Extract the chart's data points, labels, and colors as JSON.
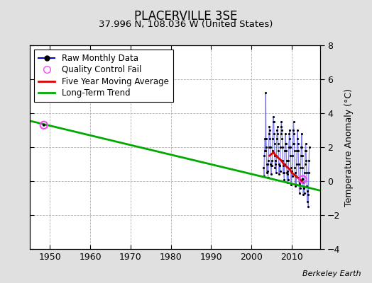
{
  "title": "PLACERVILLE 3SE",
  "subtitle": "37.996 N, 108.036 W (United States)",
  "ylabel": "Temperature Anomaly (°C)",
  "attribution": "Berkeley Earth",
  "xlim": [
    1945,
    2017
  ],
  "ylim": [
    -4,
    8
  ],
  "yticks": [
    -4,
    -2,
    0,
    2,
    4,
    6,
    8
  ],
  "xticks": [
    1950,
    1960,
    1970,
    1980,
    1990,
    2000,
    2010
  ],
  "bg_color": "#e0e0e0",
  "plot_bg_color": "#ffffff",
  "grid_color": "#b0b0b0",
  "raw_data_years": [
    2003.042,
    2003.125,
    2003.208,
    2003.292,
    2003.375,
    2003.458,
    2003.542,
    2003.625,
    2003.708,
    2003.792,
    2003.875,
    2003.958,
    2004.042,
    2004.125,
    2004.208,
    2004.292,
    2004.375,
    2004.458,
    2004.542,
    2004.625,
    2004.708,
    2004.792,
    2004.875,
    2004.958,
    2005.042,
    2005.125,
    2005.208,
    2005.292,
    2005.375,
    2005.458,
    2005.542,
    2005.625,
    2005.708,
    2005.792,
    2005.875,
    2005.958,
    2006.042,
    2006.125,
    2006.208,
    2006.292,
    2006.375,
    2006.458,
    2006.542,
    2006.625,
    2006.708,
    2006.792,
    2006.875,
    2006.958,
    2007.042,
    2007.125,
    2007.208,
    2007.292,
    2007.375,
    2007.458,
    2007.542,
    2007.625,
    2007.708,
    2007.792,
    2007.875,
    2007.958,
    2008.042,
    2008.125,
    2008.208,
    2008.292,
    2008.375,
    2008.458,
    2008.542,
    2008.625,
    2008.708,
    2008.792,
    2008.875,
    2008.958,
    2009.042,
    2009.125,
    2009.208,
    2009.292,
    2009.375,
    2009.458,
    2009.542,
    2009.625,
    2009.708,
    2009.792,
    2009.875,
    2009.958,
    2010.042,
    2010.125,
    2010.208,
    2010.292,
    2010.375,
    2010.458,
    2010.542,
    2010.625,
    2010.708,
    2010.792,
    2010.875,
    2010.958,
    2011.042,
    2011.125,
    2011.208,
    2011.292,
    2011.375,
    2011.458,
    2011.542,
    2011.625,
    2011.708,
    2011.792,
    2011.875,
    2011.958,
    2012.042,
    2012.125,
    2012.208,
    2012.292,
    2012.375,
    2012.458,
    2012.542,
    2012.625,
    2012.708,
    2012.792,
    2012.875,
    2012.958,
    2013.042,
    2013.125,
    2013.208,
    2013.292,
    2013.375,
    2013.458,
    2013.542,
    2013.625,
    2013.708,
    2013.792,
    2013.875,
    2013.958,
    2014.042,
    2014.125,
    2014.208,
    2014.292,
    2014.375
  ],
  "raw_data_values": [
    0.8,
    0.3,
    1.5,
    1.8,
    2.5,
    1.8,
    5.2,
    2.5,
    2.0,
    1.0,
    0.5,
    1.0,
    0.6,
    0.2,
    1.2,
    2.0,
    2.8,
    3.2,
    3.0,
    2.5,
    2.0,
    1.0,
    0.4,
    0.9,
    1.2,
    0.9,
    1.8,
    2.5,
    3.5,
    3.8,
    3.5,
    2.8,
    2.2,
    1.5,
    0.8,
    1.2,
    1.0,
    0.5,
    1.5,
    2.5,
    3.0,
    3.2,
    2.8,
    2.2,
    1.8,
    1.0,
    0.4,
    0.9,
    0.9,
    0.6,
    2.0,
    2.8,
    3.2,
    3.5,
    3.0,
    2.5,
    2.0,
    1.2,
    0.5,
    0.9,
    0.5,
    0.1,
    1.0,
    1.8,
    2.2,
    2.8,
    2.2,
    1.8,
    1.2,
    0.5,
    -0.1,
    0.6,
    0.4,
    0.1,
    1.2,
    2.0,
    2.8,
    3.0,
    2.5,
    2.0,
    1.5,
    0.8,
    -0.2,
    0.6,
    0.6,
    0.3,
    1.5,
    2.2,
    3.0,
    3.5,
    2.8,
    2.2,
    1.8,
    0.8,
    -0.3,
    0.5,
    0.3,
    -0.2,
    1.0,
    1.8,
    2.5,
    3.0,
    2.2,
    1.8,
    1.0,
    0.2,
    -0.7,
    -0.2,
    -0.1,
    -0.4,
    0.8,
    1.5,
    2.0,
    2.8,
    2.0,
    1.5,
    0.8,
    -0.1,
    -0.8,
    -0.4,
    -0.4,
    -0.7,
    0.5,
    1.0,
    1.8,
    2.2,
    1.8,
    1.2,
    0.5,
    -0.3,
    -1.2,
    -0.6,
    -0.8,
    -1.5,
    0.5,
    1.2,
    2.0
  ],
  "qc_fail_x": 1948.5,
  "qc_fail_y": 3.3,
  "qc_fail_x2": 2012.75,
  "qc_fail_y2": 0.1,
  "moving_avg_years": [
    2004.5,
    2005.0,
    2005.5,
    2006.0,
    2006.5,
    2007.0,
    2007.5,
    2008.0,
    2008.5,
    2009.0,
    2009.5,
    2010.0,
    2010.5,
    2011.0,
    2011.5,
    2012.0,
    2012.5
  ],
  "moving_avg_values": [
    1.5,
    1.6,
    1.7,
    1.5,
    1.4,
    1.3,
    1.2,
    1.0,
    0.9,
    0.8,
    0.7,
    0.5,
    0.4,
    0.3,
    0.2,
    0.1,
    0.0
  ],
  "trend_x": [
    1945,
    2017
  ],
  "trend_y": [
    3.55,
    -0.55
  ],
  "raw_line_color": "#0000dd",
  "raw_line_alpha": 0.5,
  "raw_dot_color": "#000000",
  "raw_dot_size": 5,
  "ma_color": "#dd0000",
  "ma_linewidth": 2.0,
  "trend_color": "#00aa00",
  "trend_linewidth": 2.0,
  "qc_color": "#ff44ff",
  "legend_fontsize": 8.5,
  "title_fontsize": 12,
  "subtitle_fontsize": 9.5,
  "tick_fontsize": 9,
  "ylabel_fontsize": 9
}
